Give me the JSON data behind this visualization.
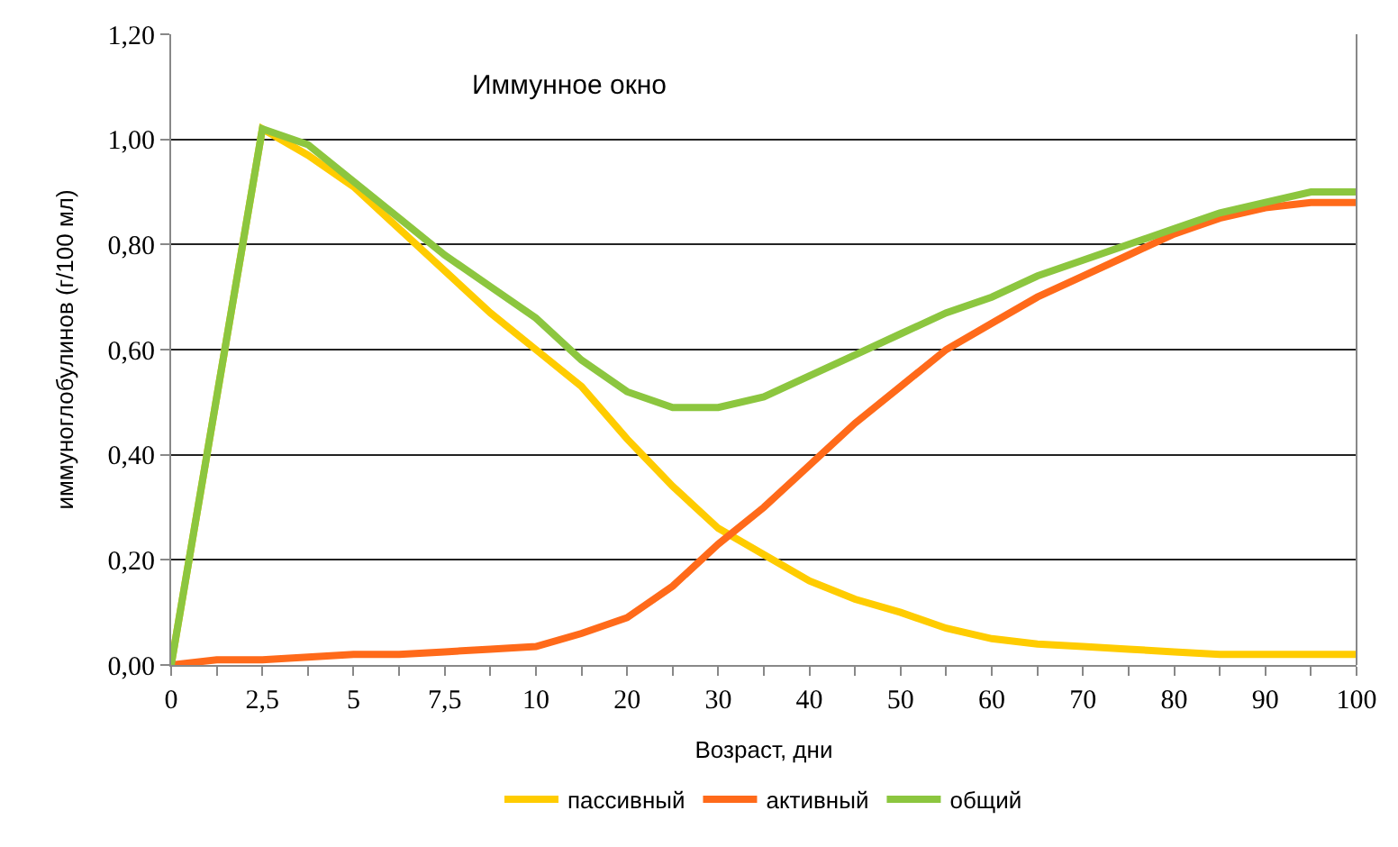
{
  "chart_data": {
    "type": "line",
    "xlabel": "Возраст, дни",
    "ylabel": "иммуноглобулинов (г/100 мл)",
    "categories": [
      "0",
      null,
      "2,5",
      null,
      "5",
      null,
      "7,5",
      null,
      "10",
      null,
      "20",
      null,
      "30",
      null,
      "40",
      null,
      "50",
      null,
      "60",
      null,
      "70",
      null,
      "80",
      null,
      "90",
      null,
      "100"
    ],
    "series": [
      {
        "name": "пассивный",
        "color": "#ffcc00",
        "values": [
          0,
          0.51,
          1.02,
          0.97,
          0.91,
          0.83,
          0.75,
          0.67,
          0.6,
          0.53,
          0.43,
          0.34,
          0.26,
          0.21,
          0.16,
          0.125,
          0.1,
          0.07,
          0.05,
          0.04,
          0.035,
          0.03,
          0.025,
          0.02,
          0.02,
          0.02,
          0.02
        ]
      },
      {
        "name": "активный",
        "color": "#ff6a1a",
        "values": [
          0,
          0.01,
          0.01,
          0.015,
          0.02,
          0.02,
          0.025,
          0.03,
          0.035,
          0.06,
          0.09,
          0.15,
          0.23,
          0.3,
          0.38,
          0.46,
          0.53,
          0.6,
          0.65,
          0.7,
          0.74,
          0.78,
          0.82,
          0.85,
          0.87,
          0.88,
          0.88
        ]
      },
      {
        "name": "общий",
        "color": "#8cc63f",
        "values": [
          0,
          0.51,
          1.02,
          0.99,
          0.92,
          0.85,
          0.78,
          0.72,
          0.66,
          0.58,
          0.52,
          0.49,
          0.49,
          0.51,
          0.55,
          0.59,
          0.63,
          0.67,
          0.7,
          0.74,
          0.77,
          0.8,
          0.83,
          0.86,
          0.88,
          0.9,
          0.9
        ]
      }
    ],
    "ylim": [
      0,
      1.2
    ],
    "yticks": [
      {
        "value": 0,
        "label": "0,00"
      },
      {
        "value": 0.2,
        "label": "0,20"
      },
      {
        "value": 0.4,
        "label": "0,40"
      },
      {
        "value": 0.6,
        "label": "0,60"
      },
      {
        "value": 0.8,
        "label": "0,80"
      },
      {
        "value": 1.0,
        "label": "1,00"
      },
      {
        "value": 1.2,
        "label": "1,20"
      }
    ],
    "grid": "y",
    "legend": "bottom",
    "marker": "none",
    "line_style": "solid",
    "annotations": [
      "Иммунное окно"
    ]
  }
}
